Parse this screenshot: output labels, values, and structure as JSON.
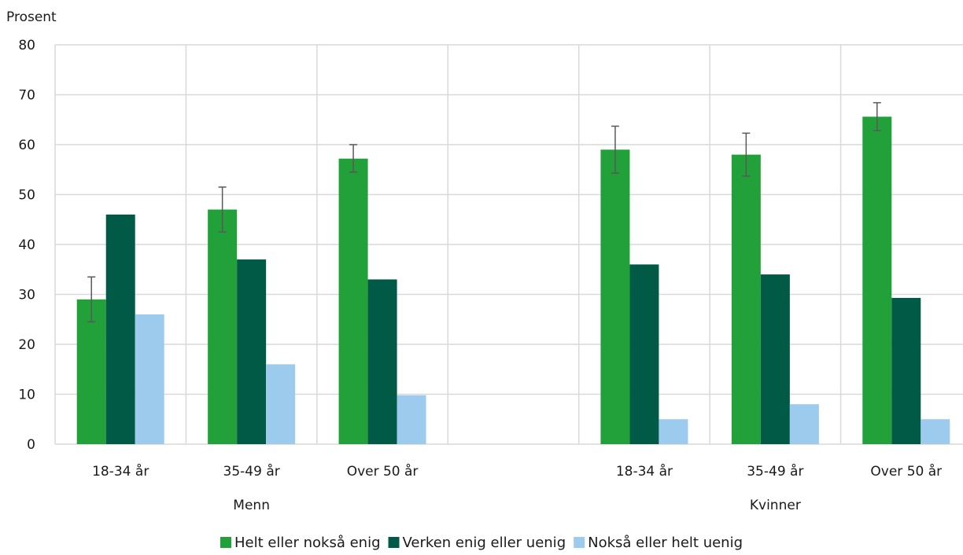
{
  "chart_data": {
    "type": "bar",
    "ylabel": "Prosent",
    "ylim": [
      0,
      80
    ],
    "yticks": [
      0,
      10,
      20,
      30,
      40,
      50,
      60,
      70,
      80
    ],
    "grid": true,
    "legend_position": "bottom",
    "groups": [
      {
        "label": "Menn",
        "categories": [
          "18-34 år",
          "35-49 år",
          "Over 50 år"
        ]
      },
      {
        "label": "",
        "categories": [
          ""
        ]
      },
      {
        "label": "Kvinner",
        "categories": [
          "18-34 år",
          "35-49 år",
          "Over 50 år"
        ]
      }
    ],
    "categories": [
      "18-34 år",
      "35-49 år",
      "Over 50 år",
      "",
      "18-34 år",
      "35-49 år",
      "Over 50 år"
    ],
    "series": [
      {
        "name": "Helt eller nokså enig",
        "color": "#22a03a",
        "values": [
          29,
          47,
          57.2,
          null,
          59,
          58,
          65.6
        ],
        "error_low": [
          24.5,
          42.5,
          54.5,
          null,
          54.3,
          53.7,
          62.8
        ],
        "error_high": [
          33.5,
          51.5,
          60,
          null,
          63.7,
          62.3,
          68.4
        ]
      },
      {
        "name": "Verken enig eller uenig",
        "color": "#005a46",
        "values": [
          46,
          37,
          33,
          null,
          36,
          34,
          29.3
        ]
      },
      {
        "name": "Nokså eller helt uenig",
        "color": "#9dcbee",
        "values": [
          26,
          16,
          9.8,
          null,
          5,
          8,
          5
        ]
      }
    ]
  }
}
